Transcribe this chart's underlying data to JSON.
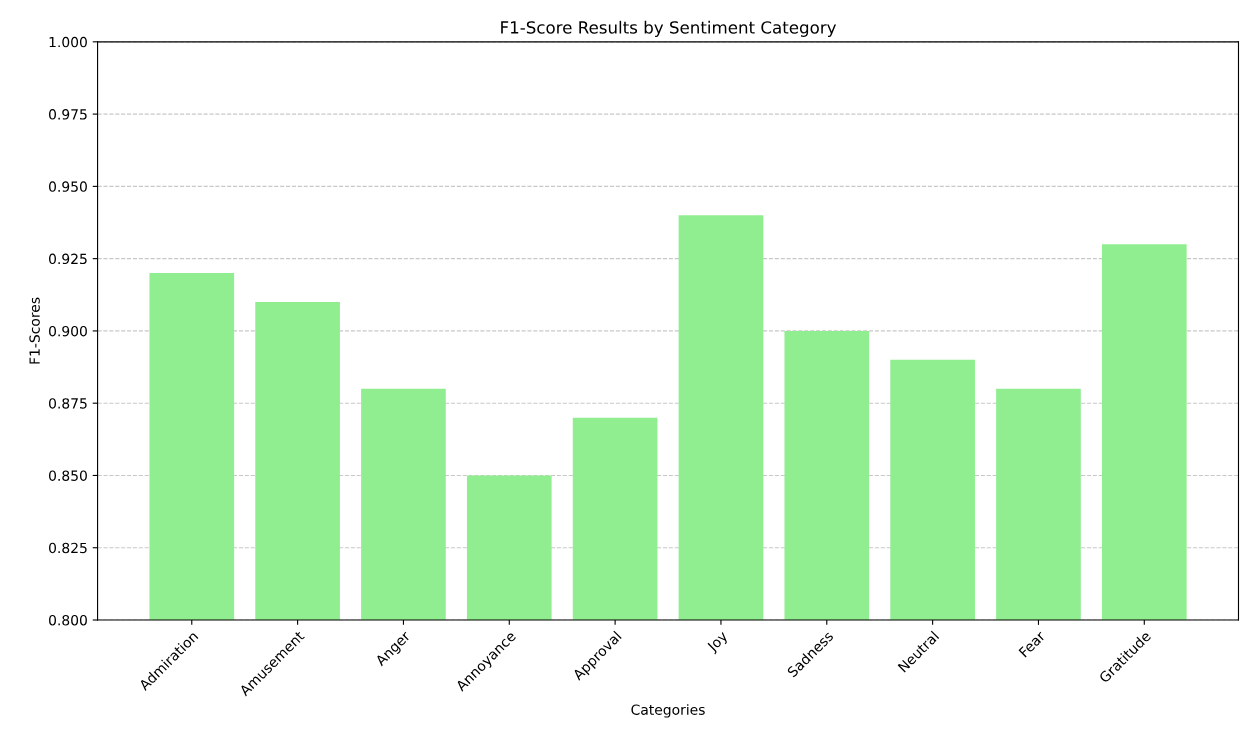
{
  "chart_data": {
    "type": "bar",
    "title": "F1-Score Results by Sentiment Category",
    "xlabel": "Categories",
    "ylabel": "F1-Scores",
    "categories": [
      "Admiration",
      "Amusement",
      "Anger",
      "Annoyance",
      "Approval",
      "Joy",
      "Sadness",
      "Neutral",
      "Fear",
      "Gratitude"
    ],
    "values": [
      0.92,
      0.91,
      0.88,
      0.85,
      0.87,
      0.94,
      0.9,
      0.89,
      0.88,
      0.93
    ],
    "color": "#90ee90",
    "ylim": [
      0.8,
      1.0
    ],
    "yticks": [
      {
        "value": 0.8,
        "label": "0.800"
      },
      {
        "value": 0.825,
        "label": "0.825"
      },
      {
        "value": 0.85,
        "label": "0.850"
      },
      {
        "value": 0.875,
        "label": "0.875"
      },
      {
        "value": 0.9,
        "label": "0.900"
      },
      {
        "value": 0.925,
        "label": "0.925"
      },
      {
        "value": 0.95,
        "label": "0.950"
      },
      {
        "value": 0.975,
        "label": "0.975"
      },
      {
        "value": 1.0,
        "label": "1.000"
      }
    ],
    "grid": "y",
    "line_style": "dashed"
  }
}
